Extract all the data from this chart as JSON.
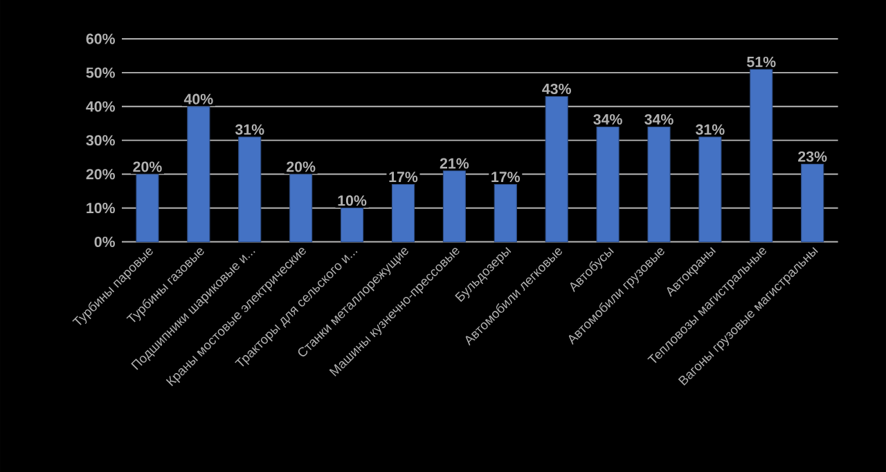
{
  "chart_data": {
    "type": "bar",
    "categories": [
      "Турбины паровые",
      "Турбины газовые",
      "Подшипники шариковые и...",
      "Краны мостовые электрические",
      "Тракторы для сельского и...",
      "Станки металлорежущие",
      "Машины кузнечно-прессовые",
      "Бульдозеры",
      "Автомобили легковые",
      "Автобусы",
      "Автомобили грузовые",
      "Автокраны",
      "Тепловозы магистральные",
      "Вагоны грузовые магистральны"
    ],
    "values": [
      20,
      40,
      31,
      20,
      10,
      17,
      21,
      17,
      43,
      34,
      34,
      31,
      51,
      23
    ],
    "value_labels": [
      "20%",
      "40%",
      "31%",
      "20%",
      "10%",
      "17%",
      "21%",
      "17%",
      "43%",
      "34%",
      "34%",
      "31%",
      "51%",
      "23%"
    ],
    "color": "#4472c4",
    "ylim": [
      0,
      60
    ],
    "yticks": [
      {
        "value": 0,
        "label": "0%"
      },
      {
        "value": 10,
        "label": "10%"
      },
      {
        "value": 20,
        "label": "20%"
      },
      {
        "value": 30,
        "label": "30%"
      },
      {
        "value": 40,
        "label": "40%"
      },
      {
        "value": 50,
        "label": "50%"
      },
      {
        "value": 60,
        "label": "60%"
      }
    ],
    "grid": "y"
  }
}
